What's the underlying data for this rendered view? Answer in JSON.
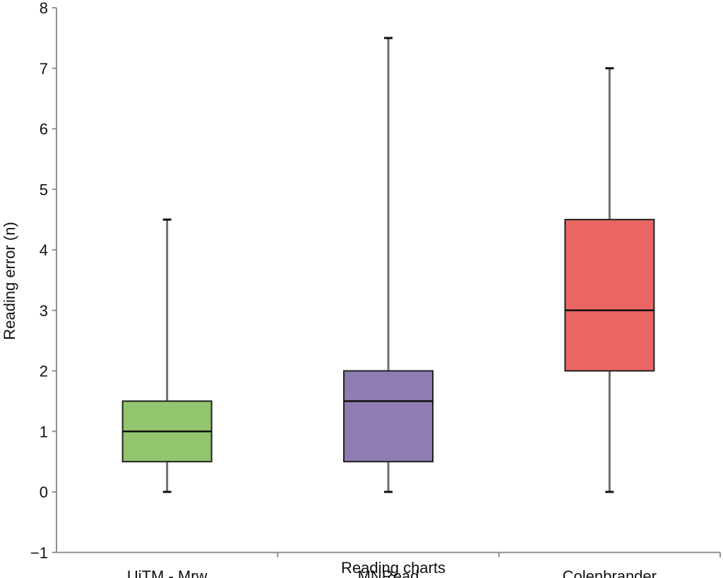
{
  "chart_data": {
    "type": "boxplot",
    "title": "",
    "xlabel": "Reading charts",
    "ylabel": "Reading error (n)",
    "ylim": [
      -1,
      8
    ],
    "yticks": [
      -1,
      0,
      1,
      2,
      3,
      4,
      5,
      6,
      7,
      8
    ],
    "ytick_labels": [
      "−1",
      "0",
      "1",
      "2",
      "3",
      "4",
      "5",
      "6",
      "7",
      "8"
    ],
    "categories": [
      "UiTM - Mrw",
      "MNRead",
      "Colenbrander"
    ],
    "boxes": [
      {
        "category": "UiTM - Mrw",
        "min": 0,
        "q1": 0.5,
        "median": 1,
        "q3": 1.5,
        "max": 4.5,
        "color": "#92c56e"
      },
      {
        "category": "MNRead",
        "min": 0,
        "q1": 0.5,
        "median": 1.5,
        "q3": 2,
        "max": 7.5,
        "color": "#8e7cb3"
      },
      {
        "category": "Colenbrander",
        "min": 0,
        "q1": 2,
        "median": 3,
        "q3": 4.5,
        "max": 7,
        "color": "#ea6664"
      }
    ],
    "grid": false,
    "legend": "none"
  }
}
